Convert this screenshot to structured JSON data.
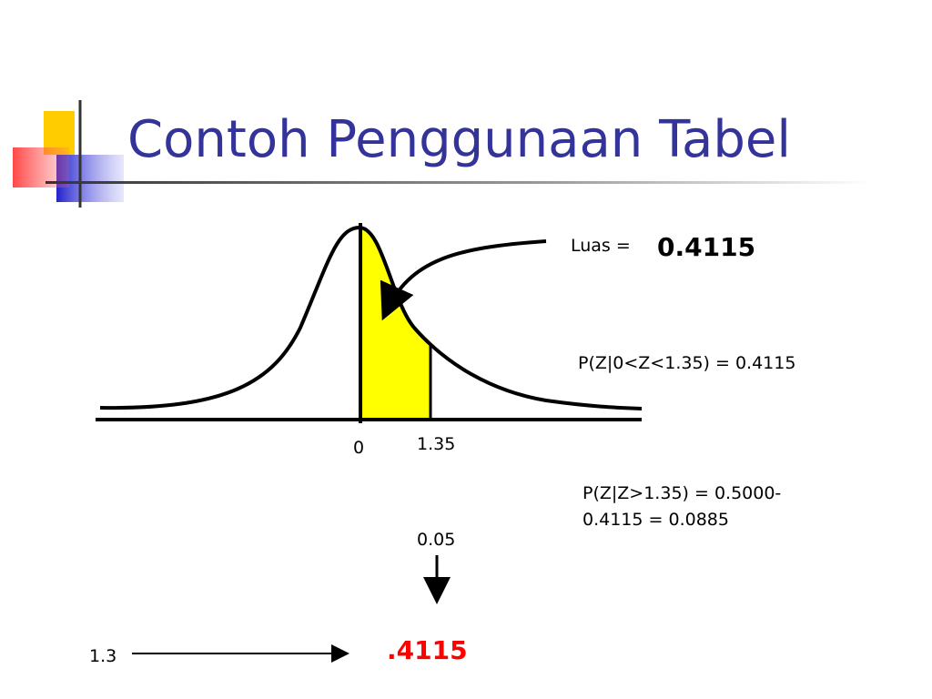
{
  "slide": {
    "title": "Contoh Penggunaan Tabel",
    "area_label": "Luas =",
    "area_value": "0.4115",
    "prob_between": "P(Z|0<Z<1.35) = 0.4115",
    "prob_above": [
      "P(Z|Z>1.35) = 0.5000-",
      "0.4115 = 0.0885"
    ],
    "axis_labels": [
      "0",
      "1.35"
    ],
    "column_header": "0.05",
    "row_header": "1.3",
    "table_value": ".4115"
  }
}
